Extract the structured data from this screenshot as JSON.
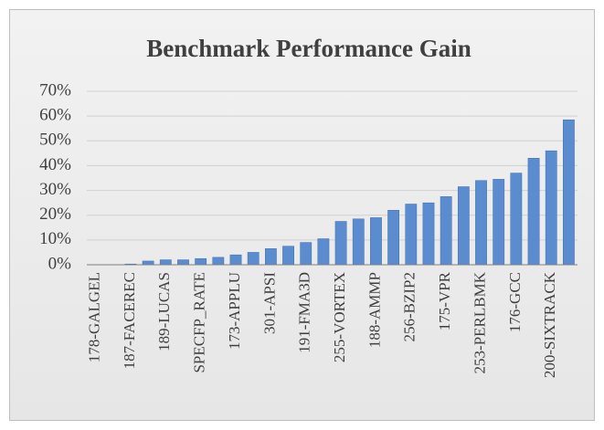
{
  "chart_data": {
    "type": "bar",
    "title": "Benchmark Performance Gain",
    "categories": [
      "178-GALGEL",
      null,
      "187-FACEREC",
      null,
      "189-LUCAS",
      null,
      "SPECFP_RATE",
      null,
      "173-APPLU",
      null,
      "301-APSI",
      null,
      "191-FMA3D",
      null,
      "255-VORTEX",
      null,
      "188-AMMP",
      null,
      "256-BZIP2",
      null,
      "175-VPR",
      null,
      "253-PERLBMK",
      null,
      "176-GCC",
      null,
      "200-SIXTRACK",
      null
    ],
    "values": [
      0,
      0,
      0.3,
      1.5,
      2,
      2,
      2.5,
      3,
      4,
      5,
      6.5,
      7.5,
      9,
      10.5,
      17.5,
      18.5,
      19,
      22,
      24.5,
      25,
      27.5,
      31.5,
      34,
      34.5,
      37,
      43,
      46,
      58.5
    ],
    "color": "#5a8ccf",
    "ylim": [
      0,
      70
    ],
    "yticks": [
      {
        "value": 0,
        "label": "0%"
      },
      {
        "value": 10,
        "label": "10%"
      },
      {
        "value": 20,
        "label": "20%"
      },
      {
        "value": 30,
        "label": "30%"
      },
      {
        "value": 40,
        "label": "40%"
      },
      {
        "value": 50,
        "label": "50%"
      },
      {
        "value": 60,
        "label": "60%"
      },
      {
        "value": 70,
        "label": "70%"
      }
    ],
    "grid": true
  }
}
